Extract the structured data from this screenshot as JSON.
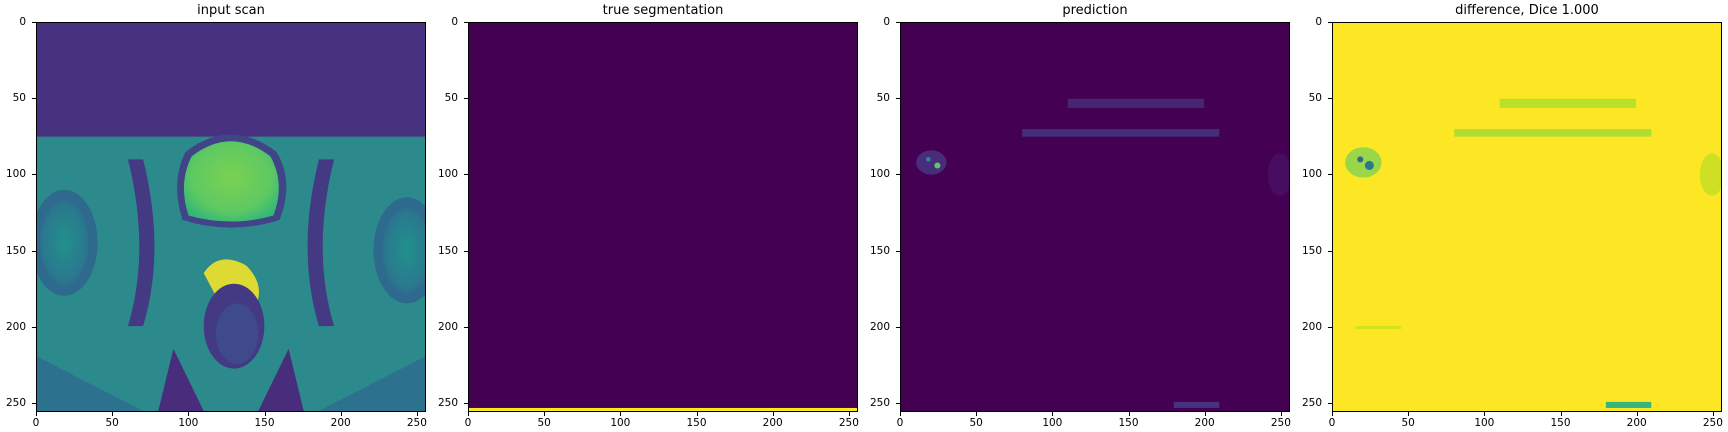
{
  "panels": [
    {
      "title": "input scan"
    },
    {
      "title": "true segmentation"
    },
    {
      "title": "prediction"
    },
    {
      "title": "difference, Dice 1.000"
    }
  ],
  "axes": {
    "ticks": [
      "0",
      "50",
      "100",
      "150",
      "200",
      "250"
    ]
  },
  "colors": {
    "viridis_dark": "#440154",
    "viridis_teal": "#21918c",
    "viridis_green": "#5ec962",
    "viridis_yellow": "#fde725"
  }
}
